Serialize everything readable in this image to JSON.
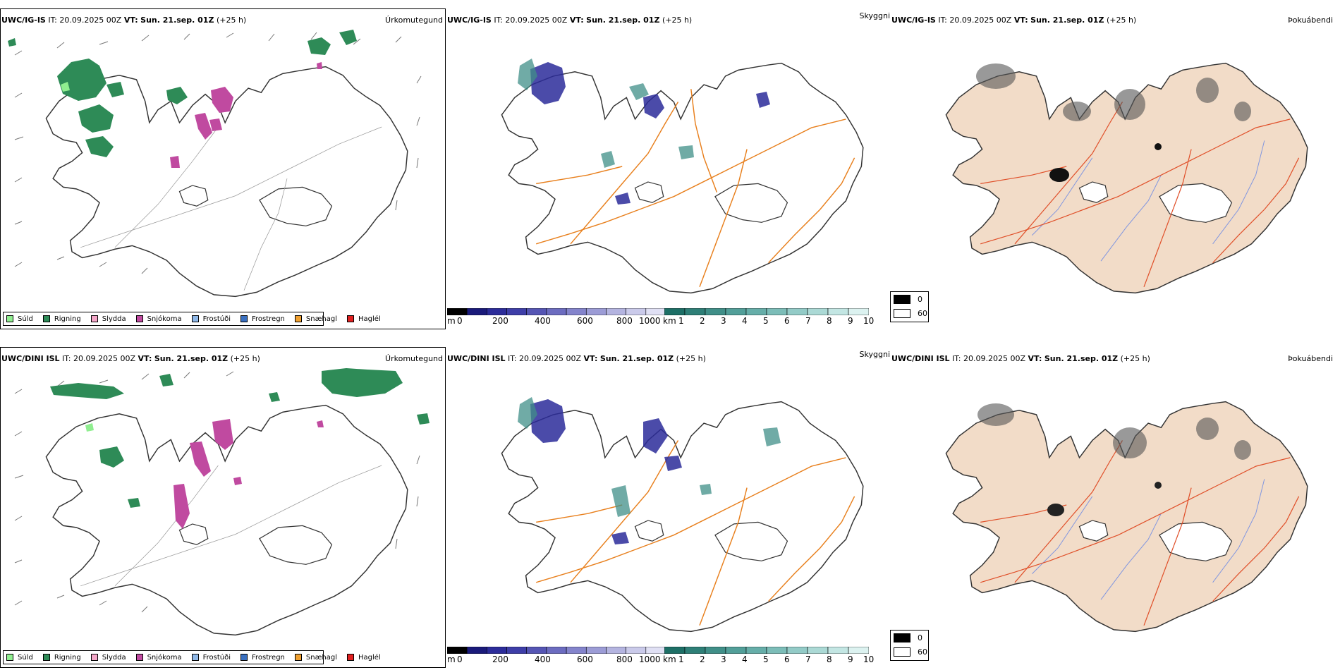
{
  "rows": [
    {
      "model": "UWC/IG-IS",
      "it_label": "IT:",
      "it_value": "20.09.2025 00Z",
      "vt_label": "VT:",
      "vt_value": "Sun. 21.sep. 01Z",
      "lead": "(+25 h)",
      "titles": [
        "Úrkomutegund",
        "Skyggni",
        "Þokuábendi"
      ]
    },
    {
      "model": "UWC/DINI ISL",
      "it_label": "IT:",
      "it_value": "20.09.2025 00Z",
      "vt_label": "VT:",
      "vt_value": "Sun. 21.sep. 01Z",
      "lead": "(+25 h)",
      "titles": [
        "Úrkomutegund",
        "Skyggni",
        "Þokuábendi"
      ]
    }
  ],
  "precip_legend": [
    {
      "label": "Súld",
      "color": "#90ee90"
    },
    {
      "label": "Rigning",
      "color": "#2e8b57"
    },
    {
      "label": "Slydda",
      "color": "#f4a6c8"
    },
    {
      "label": "Snjókoma",
      "color": "#c04aa0"
    },
    {
      "label": "Frostúði",
      "color": "#8fb8e8"
    },
    {
      "label": "Frostregn",
      "color": "#3a70c0"
    },
    {
      "label": "Snæhagl",
      "color": "#f0a030"
    },
    {
      "label": "Haglél",
      "color": "#e02020"
    }
  ],
  "vis_colorbar_m": {
    "unit": "m",
    "ticks": [
      "0",
      "200",
      "400",
      "600",
      "800",
      "1000"
    ],
    "colors": [
      "#000000",
      "#1a1a7a",
      "#2c2c9a",
      "#3e3ea8",
      "#5555b4",
      "#6c6cc0",
      "#8484cc",
      "#9c9cd6",
      "#b4b4e0",
      "#cacaea",
      "#e0e0f4"
    ]
  },
  "vis_colorbar_km": {
    "unit": "km",
    "ticks": [
      "1",
      "2",
      "3",
      "4",
      "5",
      "6",
      "7",
      "8",
      "9",
      "10"
    ],
    "colors": [
      "#1d6f66",
      "#2e7f77",
      "#408f88",
      "#529f99",
      "#66aea9",
      "#7cbdb8",
      "#93cbc7",
      "#abd9d5",
      "#c3e6e3",
      "#dcf2f0"
    ]
  },
  "fog_legend": [
    {
      "label": "0",
      "color": "#000000"
    },
    {
      "label": "60",
      "color": "#ffffff"
    }
  ]
}
